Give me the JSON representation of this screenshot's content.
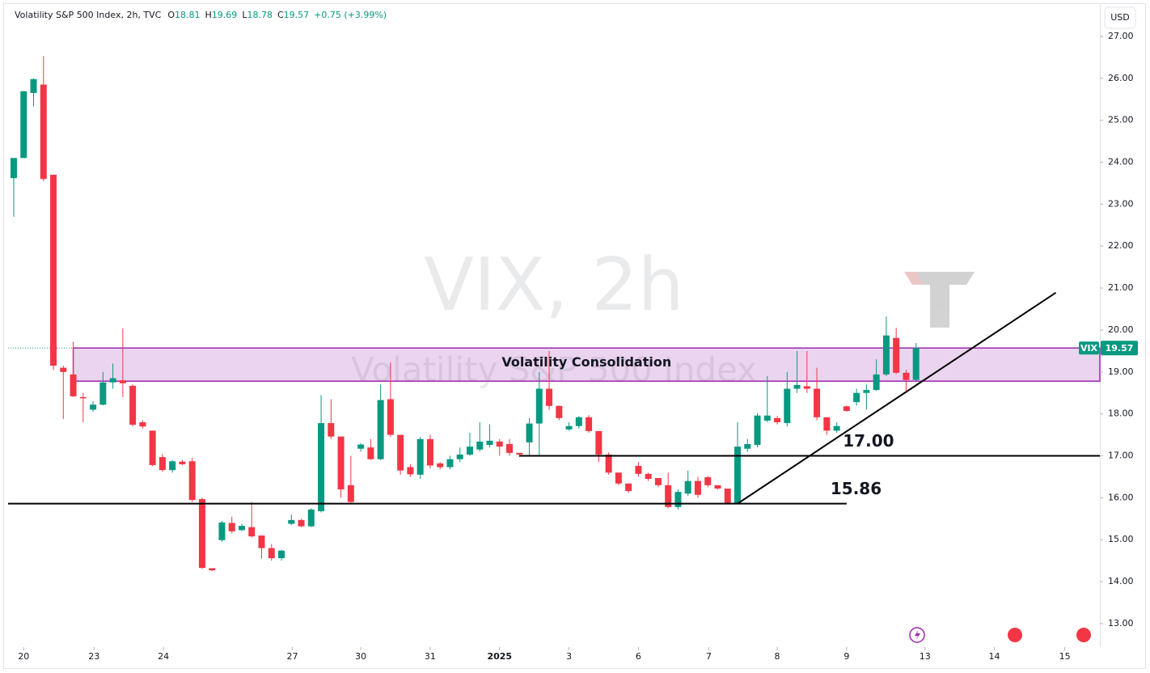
{
  "chart_data": {
    "type": "candlestick",
    "header": {
      "title": "Volatility S&P 500 Index, 2h, TVC",
      "ohlc": [
        {
          "key": "O",
          "value": "18.81"
        },
        {
          "key": "H",
          "value": "19.69"
        },
        {
          "key": "L",
          "value": "18.78"
        },
        {
          "key": "C",
          "value": "19.57"
        }
      ],
      "change": "+0.75 (+3.99%)"
    },
    "currency": "USD",
    "watermark": {
      "title": "VIX, 2h",
      "subtitle": "Volatility S&P 500 Index"
    },
    "up_color": "#089981",
    "down_color": "#f23645",
    "open": [
      23.62,
      24.1,
      25.65,
      25.85,
      23.7,
      19.1,
      18.94,
      18.4,
      18.1,
      18.22,
      18.75,
      18.8,
      18.67,
      17.8,
      17.6,
      16.97,
      16.66,
      16.86,
      16.87,
      15.97,
      14.32,
      14.99,
      15.4,
      15.23,
      15.3,
      15.1,
      14.8,
      14.56,
      15.38,
      15.47,
      15.32,
      15.68,
      17.78,
      17.46,
      16.3,
      17.17,
      17.2,
      16.92,
      18.35,
      17.5,
      16.73,
      16.55,
      17.4,
      16.82,
      16.73,
      16.92,
      17.03,
      17.15,
      17.26,
      17.34,
      17.28,
      17.07,
      17.32,
      17.77,
      18.6,
      18.19,
      17.63,
      17.71,
      17.92,
      17.59,
      17.03,
      16.6,
      16.34,
      16.76,
      16.57,
      16.47,
      16.3,
      15.78,
      16.1,
      16.4,
      16.49,
      16.3,
      16.22,
      15.87,
      17.17,
      17.26,
      17.84,
      17.9,
      17.78,
      18.6,
      18.66,
      18.6,
      17.92,
      17.6,
      18.18,
      18.28,
      18.5,
      18.57,
      18.94,
      19.81,
      18.98,
      18.81
    ],
    "high": [
      24.1,
      25.7,
      26.0,
      26.53,
      23.7,
      19.15,
      19.72,
      18.5,
      18.3,
      19.0,
      19.2,
      20.04,
      18.7,
      17.85,
      17.6,
      17.05,
      16.9,
      16.9,
      16.95,
      16.0,
      14.32,
      15.45,
      15.55,
      15.38,
      15.9,
      15.1,
      14.9,
      14.76,
      15.6,
      15.5,
      15.75,
      18.45,
      18.35,
      17.46,
      17.0,
      17.3,
      17.4,
      18.7,
      19.22,
      17.5,
      16.8,
      17.45,
      17.5,
      16.85,
      17.0,
      17.2,
      17.55,
      17.8,
      17.75,
      17.4,
      17.4,
      17.07,
      17.9,
      19.0,
      19.5,
      18.2,
      17.8,
      17.95,
      17.97,
      17.59,
      17.08,
      16.6,
      16.34,
      16.85,
      16.6,
      16.47,
      16.6,
      16.2,
      16.65,
      16.5,
      16.52,
      16.3,
      16.22,
      17.8,
      17.4,
      18.02,
      18.9,
      17.95,
      19.0,
      19.5,
      19.5,
      19.1,
      17.92,
      17.8,
      18.2,
      18.6,
      18.7,
      19.3,
      20.32,
      20.05,
      19.05,
      19.69
    ],
    "low": [
      22.7,
      24.1,
      25.33,
      23.55,
      19.05,
      17.88,
      18.4,
      17.8,
      18.05,
      18.2,
      18.6,
      18.4,
      17.7,
      17.65,
      16.75,
      16.62,
      16.6,
      16.78,
      15.9,
      14.3,
      14.25,
      14.95,
      15.15,
      15.2,
      15.05,
      14.55,
      14.5,
      14.5,
      15.35,
      15.3,
      15.3,
      15.65,
      17.4,
      16.0,
      15.88,
      17.1,
      16.9,
      16.9,
      17.45,
      16.55,
      16.5,
      16.45,
      16.7,
      16.68,
      16.68,
      16.85,
      17.0,
      17.1,
      17.2,
      17.0,
      17.0,
      16.97,
      17.0,
      17.0,
      18.1,
      17.85,
      17.6,
      17.65,
      17.55,
      16.85,
      16.55,
      16.3,
      16.12,
      16.5,
      16.4,
      16.25,
      15.75,
      15.72,
      16.05,
      16.0,
      16.25,
      16.2,
      15.85,
      15.85,
      17.1,
      17.2,
      17.8,
      17.75,
      17.7,
      18.5,
      18.5,
      17.85,
      17.5,
      17.55,
      18.05,
      18.2,
      18.1,
      18.55,
      18.9,
      18.95,
      18.5,
      18.78
    ],
    "close": [
      24.1,
      25.69,
      25.98,
      23.6,
      19.15,
      19.0,
      18.42,
      18.38,
      18.22,
      18.75,
      18.85,
      18.73,
      17.74,
      17.7,
      16.78,
      16.66,
      16.87,
      16.8,
      15.95,
      14.33,
      14.27,
      15.41,
      15.2,
      15.33,
      15.08,
      14.8,
      14.56,
      14.74,
      15.47,
      15.32,
      15.72,
      17.78,
      17.46,
      16.2,
      15.9,
      17.27,
      16.92,
      18.33,
      17.5,
      16.65,
      16.56,
      17.4,
      16.77,
      16.73,
      16.92,
      17.03,
      17.22,
      17.34,
      17.36,
      17.22,
      17.07,
      17.03,
      17.77,
      18.6,
      18.19,
      17.9,
      17.71,
      17.92,
      17.59,
      17.03,
      16.6,
      16.34,
      16.16,
      16.57,
      16.45,
      16.3,
      15.78,
      16.14,
      16.4,
      16.07,
      16.3,
      16.22,
      15.87,
      17.22,
      17.28,
      17.96,
      17.96,
      17.8,
      18.6,
      18.69,
      18.6,
      17.92,
      17.6,
      17.71,
      18.07,
      18.5,
      18.57,
      18.94,
      19.87,
      18.98,
      18.81,
      19.57
    ],
    "xlim": [
      -0.57,
      109.54
    ],
    "ylim": [
      12.44,
      27.77
    ],
    "xticks": [
      {
        "value": 1.0,
        "label": "20"
      },
      {
        "value": 8.1,
        "label": "23"
      },
      {
        "value": 15.1,
        "label": "24"
      },
      {
        "value": 28.1,
        "label": "27"
      },
      {
        "value": 35.0,
        "label": "30"
      },
      {
        "value": 42.0,
        "label": "31"
      },
      {
        "value": 49.0,
        "label": "2025"
      },
      {
        "value": 56.0,
        "label": "3"
      },
      {
        "value": 63.0,
        "label": "6"
      },
      {
        "value": 70.1,
        "label": "7"
      },
      {
        "value": 77.0,
        "label": "8"
      },
      {
        "value": 84.0,
        "label": "9"
      },
      {
        "value": 91.9,
        "label": "13"
      },
      {
        "value": 98.9,
        "label": "14"
      },
      {
        "value": 106.0,
        "label": "15"
      }
    ],
    "yticks": [
      {
        "value": 13,
        "label": "13.00"
      },
      {
        "value": 14,
        "label": "14.00"
      },
      {
        "value": 15,
        "label": "15.00"
      },
      {
        "value": 16,
        "label": "16.00"
      },
      {
        "value": 17,
        "label": "17.00"
      },
      {
        "value": 18,
        "label": "18.00"
      },
      {
        "value": 19,
        "label": "19.00"
      },
      {
        "value": 20,
        "label": "20.00"
      },
      {
        "value": 21,
        "label": "21.00"
      },
      {
        "value": 22,
        "label": "22.00"
      },
      {
        "value": 23,
        "label": "23.00"
      },
      {
        "value": 24,
        "label": "24.00"
      },
      {
        "value": 25,
        "label": "25.00"
      },
      {
        "value": 26,
        "label": "26.00"
      },
      {
        "value": 27,
        "label": "27.00"
      }
    ],
    "zone": {
      "label": "Volatility Consolidation",
      "low": 18.78,
      "high": 19.57,
      "start": 6.0,
      "color": "#9c27b0"
    },
    "levels": [
      {
        "value": 17,
        "label": "17.00",
        "start": 51.0
      },
      {
        "value": 15.86,
        "label": "15.86",
        "end": 84.0
      }
    ],
    "trendline": {
      "x": [
        73.0,
        105.1
      ],
      "y": [
        15.86,
        20.89
      ]
    },
    "last_price": {
      "name": "VIX",
      "value": 19.57
    }
  }
}
